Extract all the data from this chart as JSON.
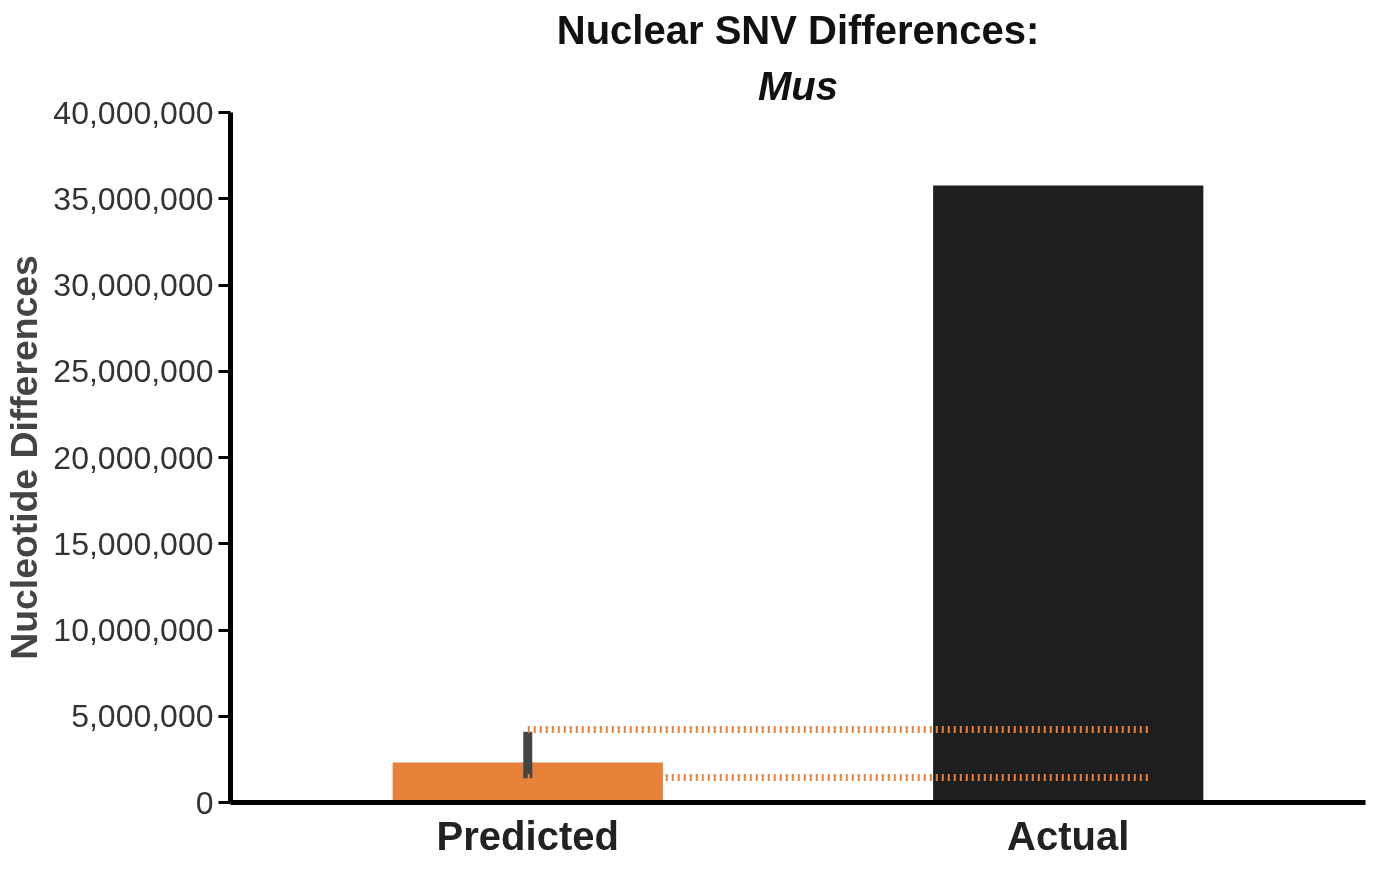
{
  "chart_data": {
    "type": "bar",
    "title": "Nuclear SNV Differences:",
    "subtitle": "Mus",
    "ylabel": "Nucleotide Differences",
    "categories": [
      "Predicted",
      "Actual"
    ],
    "values": [
      2320000,
      35770000
    ],
    "colors": [
      "#e8823a",
      "#1e1e1e"
    ],
    "errors": [
      [
        1400000,
        4100000
      ],
      null
    ],
    "ylim": [
      0,
      40000000
    ],
    "yticks": [
      {
        "value": 0,
        "label": "0"
      },
      {
        "value": 5000000,
        "label": "5,000,000"
      },
      {
        "value": 10000000,
        "label": "10,000,000"
      },
      {
        "value": 15000000,
        "label": "15,000,000"
      },
      {
        "value": 20000000,
        "label": "20,000,000"
      },
      {
        "value": 25000000,
        "label": "25,000,000"
      },
      {
        "value": 30000000,
        "label": "30,000,000"
      },
      {
        "value": 35000000,
        "label": "35,000,000"
      },
      {
        "value": 40000000,
        "label": "40,000,000"
      }
    ],
    "ref_lines": [
      {
        "axis": "y",
        "value": 4230000,
        "color": "#e8823a",
        "line_style": "dotted"
      },
      {
        "axis": "y",
        "value": 1450000,
        "color": "#e8823a",
        "line_style": "dotted"
      }
    ],
    "grid": false
  }
}
